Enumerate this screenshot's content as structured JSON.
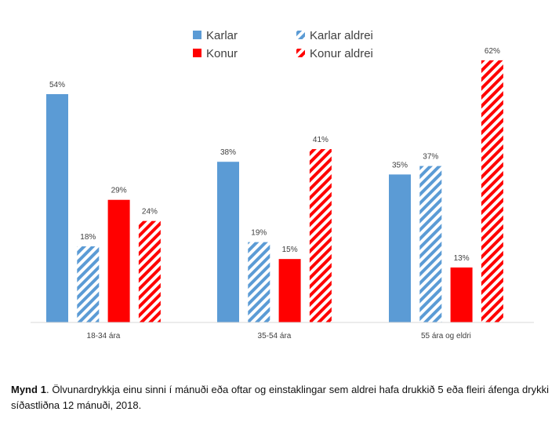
{
  "chart_data": {
    "type": "bar",
    "categories": [
      "18-34 ára",
      "35-54 ára",
      "55 ára og eldri"
    ],
    "series": [
      {
        "name": "Karlar",
        "values": [
          54,
          38,
          35
        ],
        "color": "#5b9bd5",
        "pattern": "solid"
      },
      {
        "name": "Karlar aldrei",
        "values": [
          18,
          19,
          37
        ],
        "color": "#5b9bd5",
        "pattern": "hatched"
      },
      {
        "name": "Konur",
        "values": [
          29,
          15,
          13
        ],
        "color": "#ff0000",
        "pattern": "solid"
      },
      {
        "name": "Konur aldrei",
        "values": [
          24,
          41,
          62
        ],
        "color": "#ff0000",
        "pattern": "hatched"
      }
    ],
    "value_suffix": "%",
    "ylim": [
      0,
      70
    ],
    "grid": false,
    "legend_position": "top-center"
  },
  "caption": {
    "label": "Mynd 1",
    "text": ". Ölvunardrykkja einu sinni í mánuði eða oftar og einstaklingar sem aldrei hafa drukkið 5 eða fleiri áfenga drykki síðastliðna 12 mánuði, 2018."
  }
}
